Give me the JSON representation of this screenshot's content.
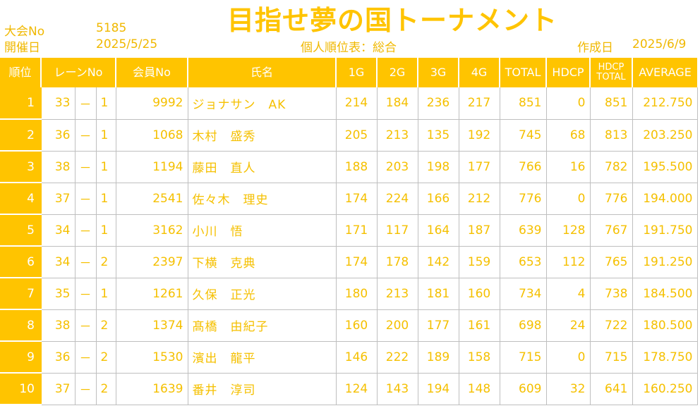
{
  "header": {
    "tournament_no_label": "大会No",
    "tournament_no": "5185",
    "date_label": "開催日",
    "date": "2025/5/25",
    "title": "目指せ夢の国トーナメント",
    "subtitle": "個人順位表：総合",
    "created_label": "作成日",
    "created_date": "2025/6/9"
  },
  "columns": {
    "rank": "順位",
    "lane": "レーンNo",
    "member": "会員No",
    "name": "氏名",
    "g1": "1G",
    "g2": "2G",
    "g3": "3G",
    "g4": "4G",
    "total": "TOTAL",
    "hdcp": "HDCP",
    "hdcp_total_1": "HDCP",
    "hdcp_total_2": "TOTAL",
    "average": "AVERAGE"
  },
  "rows": [
    {
      "rank": "1",
      "lane": "33",
      "dash": "－",
      "lane_sub": "1",
      "member": "9992",
      "name": "ジョナサン　AK",
      "g1": "214",
      "g2": "184",
      "g3": "236",
      "g4": "217",
      "total": "851",
      "hdcp": "0",
      "hdcp_total": "851",
      "average": "212.750"
    },
    {
      "rank": "2",
      "lane": "36",
      "dash": "－",
      "lane_sub": "1",
      "member": "1068",
      "name": "木村　盛秀",
      "g1": "205",
      "g2": "213",
      "g3": "135",
      "g4": "192",
      "total": "745",
      "hdcp": "68",
      "hdcp_total": "813",
      "average": "203.250"
    },
    {
      "rank": "3",
      "lane": "38",
      "dash": "－",
      "lane_sub": "1",
      "member": "1194",
      "name": "藤田　直人",
      "g1": "188",
      "g2": "203",
      "g3": "198",
      "g4": "177",
      "total": "766",
      "hdcp": "16",
      "hdcp_total": "782",
      "average": "195.500"
    },
    {
      "rank": "4",
      "lane": "37",
      "dash": "－",
      "lane_sub": "1",
      "member": "2541",
      "name": "佐々木　理史",
      "g1": "174",
      "g2": "224",
      "g3": "166",
      "g4": "212",
      "total": "776",
      "hdcp": "0",
      "hdcp_total": "776",
      "average": "194.000"
    },
    {
      "rank": "5",
      "lane": "34",
      "dash": "－",
      "lane_sub": "1",
      "member": "3162",
      "name": "小川　悟",
      "g1": "171",
      "g2": "117",
      "g3": "164",
      "g4": "187",
      "total": "639",
      "hdcp": "128",
      "hdcp_total": "767",
      "average": "191.750"
    },
    {
      "rank": "6",
      "lane": "34",
      "dash": "－",
      "lane_sub": "2",
      "member": "2397",
      "name": "下横　克典",
      "g1": "174",
      "g2": "178",
      "g3": "142",
      "g4": "159",
      "total": "653",
      "hdcp": "112",
      "hdcp_total": "765",
      "average": "191.250"
    },
    {
      "rank": "7",
      "lane": "35",
      "dash": "－",
      "lane_sub": "1",
      "member": "1261",
      "name": "久保　正光",
      "g1": "180",
      "g2": "213",
      "g3": "181",
      "g4": "160",
      "total": "734",
      "hdcp": "4",
      "hdcp_total": "738",
      "average": "184.500"
    },
    {
      "rank": "8",
      "lane": "38",
      "dash": "－",
      "lane_sub": "2",
      "member": "1374",
      "name": "髙橋　由紀子",
      "g1": "160",
      "g2": "200",
      "g3": "177",
      "g4": "161",
      "total": "698",
      "hdcp": "24",
      "hdcp_total": "722",
      "average": "180.500"
    },
    {
      "rank": "9",
      "lane": "36",
      "dash": "－",
      "lane_sub": "2",
      "member": "1530",
      "name": "濱出　龍平",
      "g1": "146",
      "g2": "222",
      "g3": "189",
      "g4": "158",
      "total": "715",
      "hdcp": "0",
      "hdcp_total": "715",
      "average": "178.750"
    },
    {
      "rank": "10",
      "lane": "37",
      "dash": "－",
      "lane_sub": "2",
      "member": "1639",
      "name": "番井　淳司",
      "g1": "124",
      "g2": "143",
      "g3": "194",
      "g4": "148",
      "total": "609",
      "hdcp": "32",
      "hdcp_total": "641",
      "average": "160.250"
    }
  ]
}
